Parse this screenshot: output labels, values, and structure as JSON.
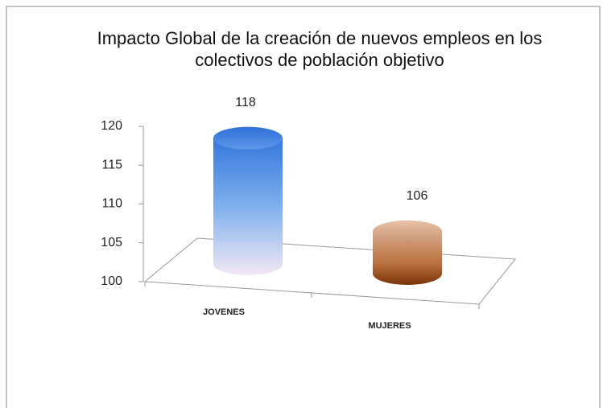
{
  "chart_data": {
    "type": "bar3d",
    "title": "Impacto Global de la creación de nuevos empleos en los colectivos de población objetivo",
    "categories": [
      "JOVENES",
      "MUJERES"
    ],
    "values": [
      118,
      106
    ],
    "colors": [
      "#3a7fe0",
      "#a0522d"
    ],
    "ylim": [
      100,
      120
    ],
    "yticks": [
      100,
      105,
      110,
      115,
      120
    ]
  }
}
